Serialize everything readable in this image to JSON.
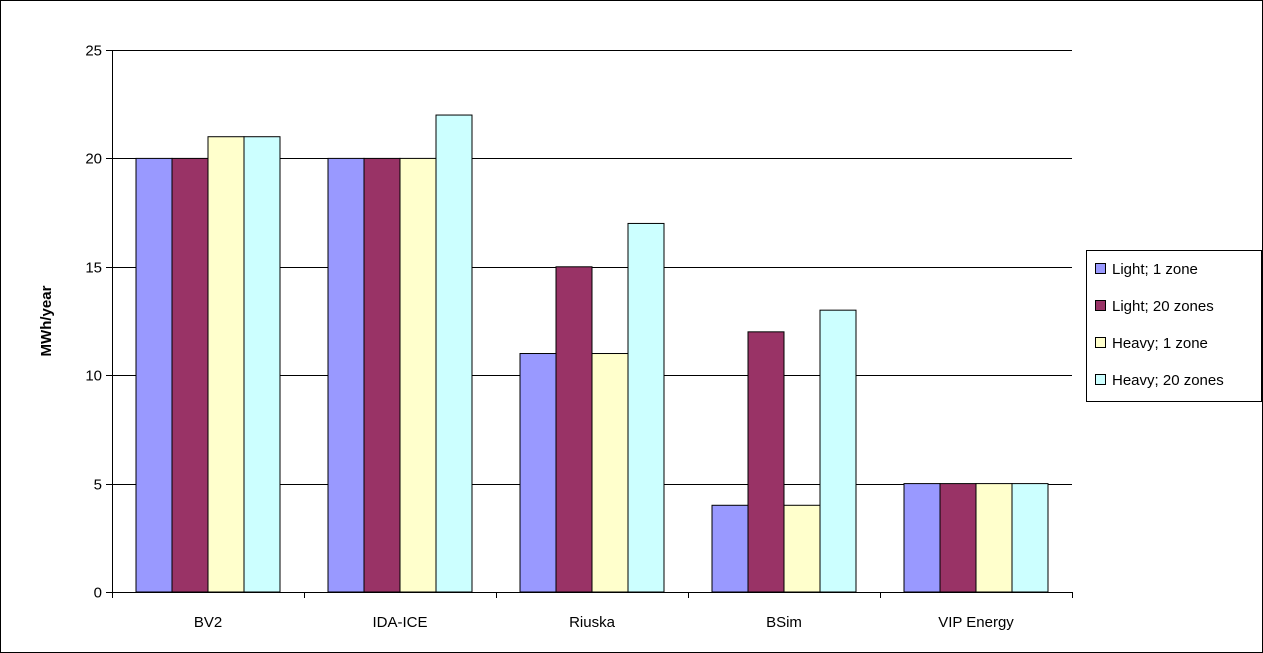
{
  "chart_data": {
    "type": "bar",
    "title": "",
    "xlabel": "",
    "ylabel": "MWh/year",
    "ylim": [
      0,
      25
    ],
    "yticks": [
      0,
      5,
      10,
      15,
      20,
      25
    ],
    "grid": true,
    "legend_position": "right",
    "categories": [
      "BV2",
      "IDA-ICE",
      "Riuska",
      "BSim",
      "VIP Energy"
    ],
    "series": [
      {
        "name": "Light; 1 zone",
        "color": "#9999FF",
        "values": [
          20,
          20,
          11,
          4,
          5
        ]
      },
      {
        "name": "Light; 20 zones",
        "color": "#993366",
        "values": [
          20,
          20,
          15,
          12,
          5
        ]
      },
      {
        "name": "Heavy; 1 zone",
        "color": "#FFFFCC",
        "values": [
          21,
          20,
          11,
          4,
          5
        ]
      },
      {
        "name": "Heavy; 20 zones",
        "color": "#CCFFFF",
        "values": [
          21,
          22,
          17,
          13,
          5
        ]
      }
    ]
  }
}
